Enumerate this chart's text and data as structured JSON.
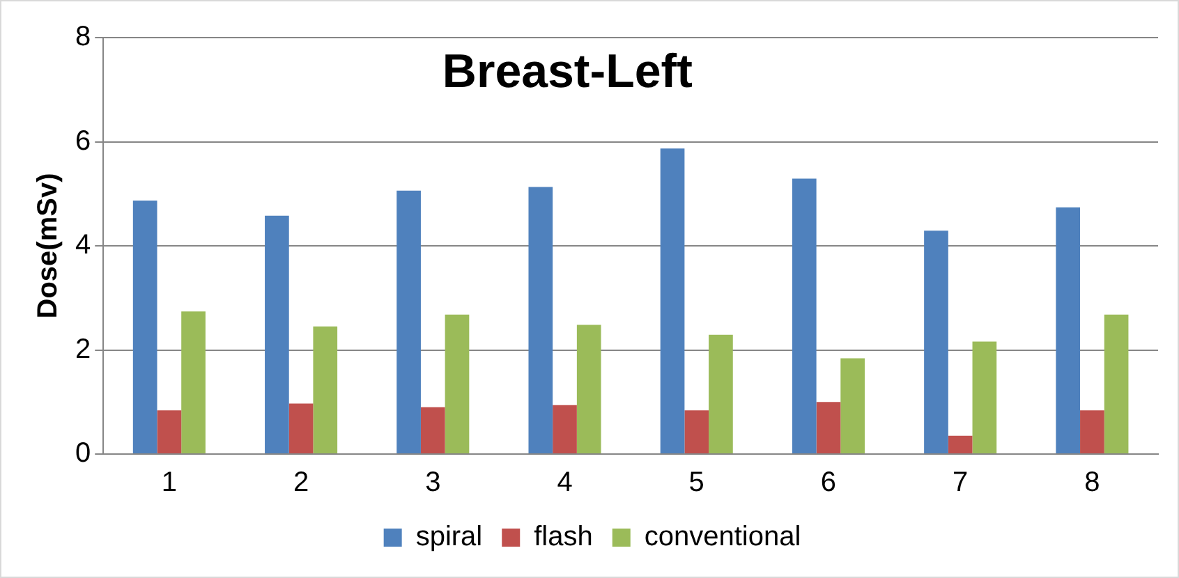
{
  "chart_data": {
    "type": "bar",
    "title": "Breast-Left",
    "ylabel": "Dose(mSv)",
    "categories": [
      "1",
      "2",
      "3",
      "4",
      "5",
      "6",
      "7",
      "8"
    ],
    "series": [
      {
        "name": "spiral",
        "color": "#4f81bd",
        "values": [
          4.87,
          4.58,
          5.06,
          5.13,
          5.87,
          5.29,
          4.29,
          4.74
        ]
      },
      {
        "name": "flash",
        "color": "#c0504d",
        "values": [
          0.84,
          0.97,
          0.9,
          0.94,
          0.84,
          1.0,
          0.35,
          0.84
        ]
      },
      {
        "name": "conventional",
        "color": "#9bbb59",
        "values": [
          2.74,
          2.45,
          2.68,
          2.48,
          2.29,
          1.84,
          2.16,
          2.68
        ]
      }
    ],
    "ylim": [
      0,
      8
    ],
    "yticks": [
      0,
      2,
      4,
      6,
      8
    ],
    "grid": "y",
    "legend": "bottom"
  }
}
